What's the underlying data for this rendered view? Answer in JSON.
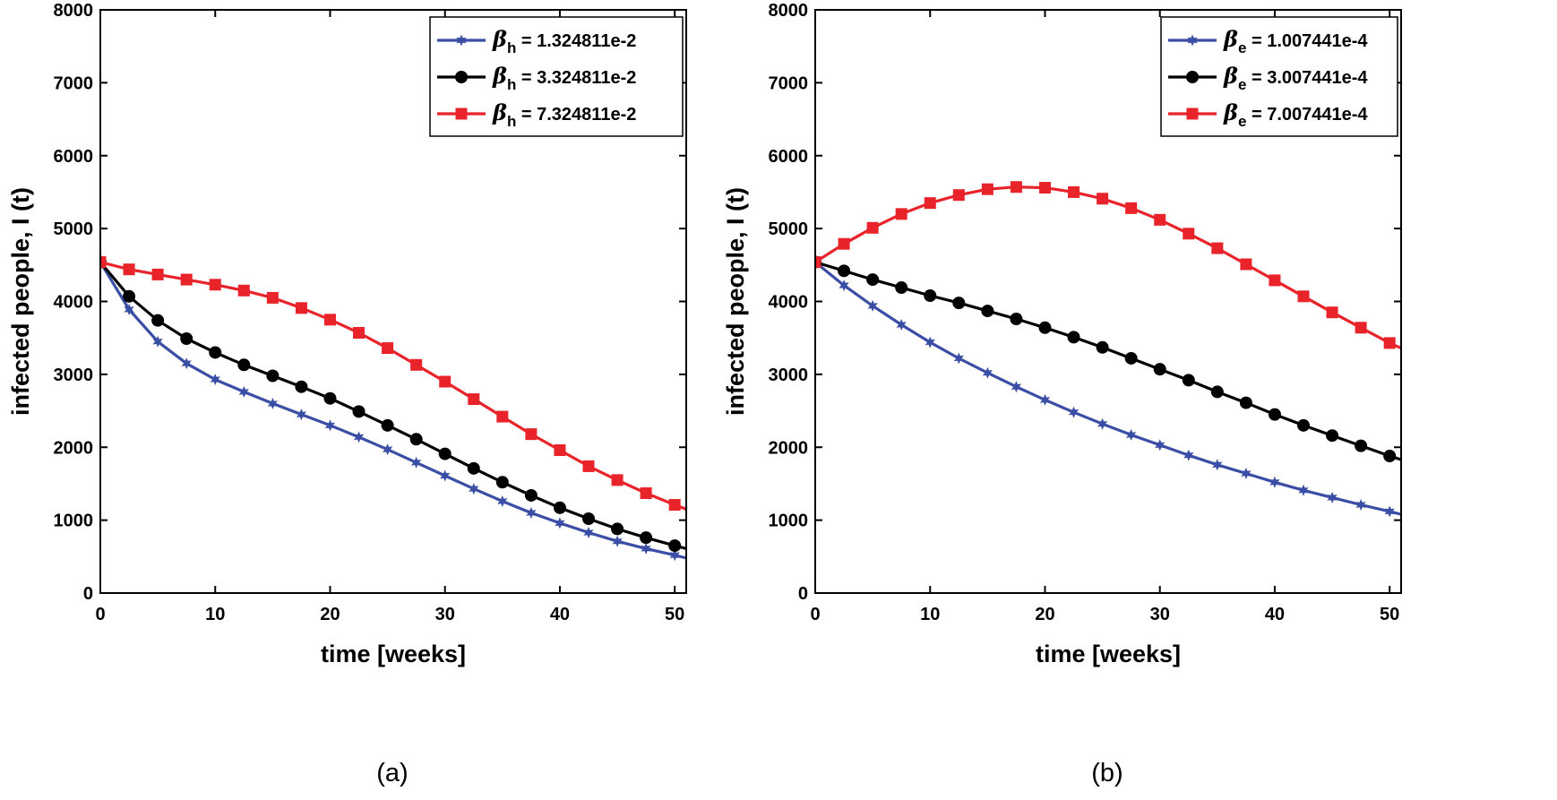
{
  "chart_data": [
    {
      "type": "line",
      "caption": "(a)",
      "xlabel": "time [weeks]",
      "ylabel": "infected people, I (t)",
      "xlim": [
        0,
        51
      ],
      "ylim": [
        0,
        8000
      ],
      "xticks": [
        0,
        10,
        20,
        30,
        40,
        50
      ],
      "yticks": [
        0,
        1000,
        2000,
        3000,
        4000,
        5000,
        6000,
        7000,
        8000
      ],
      "legend_position": "top-right",
      "legend_symbol": "β",
      "legend_subscript": "h",
      "x": [
        0,
        2.5,
        5,
        7.5,
        10,
        12.5,
        15,
        17.5,
        20,
        22.5,
        25,
        27.5,
        30,
        32.5,
        35,
        37.5,
        40,
        42.5,
        45,
        47.5,
        50
      ],
      "series": [
        {
          "name": "1.324811e-2",
          "color": "#3b4ea6",
          "marker": "star",
          "values": [
            4540,
            3890,
            3450,
            3150,
            2930,
            2760,
            2600,
            2450,
            2300,
            2140,
            1970,
            1790,
            1610,
            1430,
            1260,
            1100,
            960,
            830,
            710,
            610,
            520
          ],
          "end": [
            51,
            480
          ]
        },
        {
          "name": "3.324811e-2",
          "color": "#000000",
          "marker": "circle",
          "values": [
            4540,
            4070,
            3740,
            3490,
            3300,
            3130,
            2980,
            2830,
            2670,
            2490,
            2300,
            2110,
            1910,
            1710,
            1520,
            1340,
            1170,
            1020,
            880,
            760,
            650
          ],
          "end": [
            51,
            610
          ]
        },
        {
          "name": "7.324811e-2",
          "color": "#e8232a",
          "marker": "square",
          "values": [
            4540,
            4440,
            4370,
            4300,
            4230,
            4150,
            4050,
            3910,
            3750,
            3570,
            3360,
            3130,
            2900,
            2660,
            2420,
            2180,
            1960,
            1740,
            1550,
            1370,
            1210
          ],
          "end": [
            51,
            1150
          ]
        }
      ]
    },
    {
      "type": "line",
      "caption": "(b)",
      "xlabel": "time [weeks]",
      "ylabel": "infected people, I (t)",
      "xlim": [
        0,
        51
      ],
      "ylim": [
        0,
        8000
      ],
      "xticks": [
        0,
        10,
        20,
        30,
        40,
        50
      ],
      "yticks": [
        0,
        1000,
        2000,
        3000,
        4000,
        5000,
        6000,
        7000,
        8000
      ],
      "legend_position": "top-right",
      "legend_symbol": "β",
      "legend_subscript": "e",
      "x": [
        0,
        2.5,
        5,
        7.5,
        10,
        12.5,
        15,
        17.5,
        20,
        22.5,
        25,
        27.5,
        30,
        32.5,
        35,
        37.5,
        40,
        42.5,
        45,
        47.5,
        50
      ],
      "series": [
        {
          "name": "1.007441e-4",
          "color": "#3b4ea6",
          "marker": "star",
          "values": [
            4540,
            4220,
            3940,
            3680,
            3440,
            3220,
            3020,
            2830,
            2650,
            2480,
            2320,
            2170,
            2030,
            1890,
            1760,
            1640,
            1520,
            1410,
            1310,
            1210,
            1120
          ],
          "end": [
            51,
            1080
          ]
        },
        {
          "name": "3.007441e-4",
          "color": "#000000",
          "marker": "circle",
          "values": [
            4540,
            4420,
            4300,
            4190,
            4080,
            3980,
            3870,
            3760,
            3640,
            3510,
            3370,
            3220,
            3070,
            2920,
            2760,
            2610,
            2450,
            2300,
            2160,
            2020,
            1880
          ],
          "end": [
            51,
            1830
          ]
        },
        {
          "name": "7.007441e-4",
          "color": "#e8232a",
          "marker": "square",
          "values": [
            4540,
            4790,
            5010,
            5200,
            5350,
            5460,
            5540,
            5570,
            5560,
            5500,
            5410,
            5280,
            5120,
            4930,
            4730,
            4510,
            4290,
            4070,
            3850,
            3640,
            3430
          ],
          "end": [
            51,
            3360
          ]
        }
      ]
    }
  ]
}
